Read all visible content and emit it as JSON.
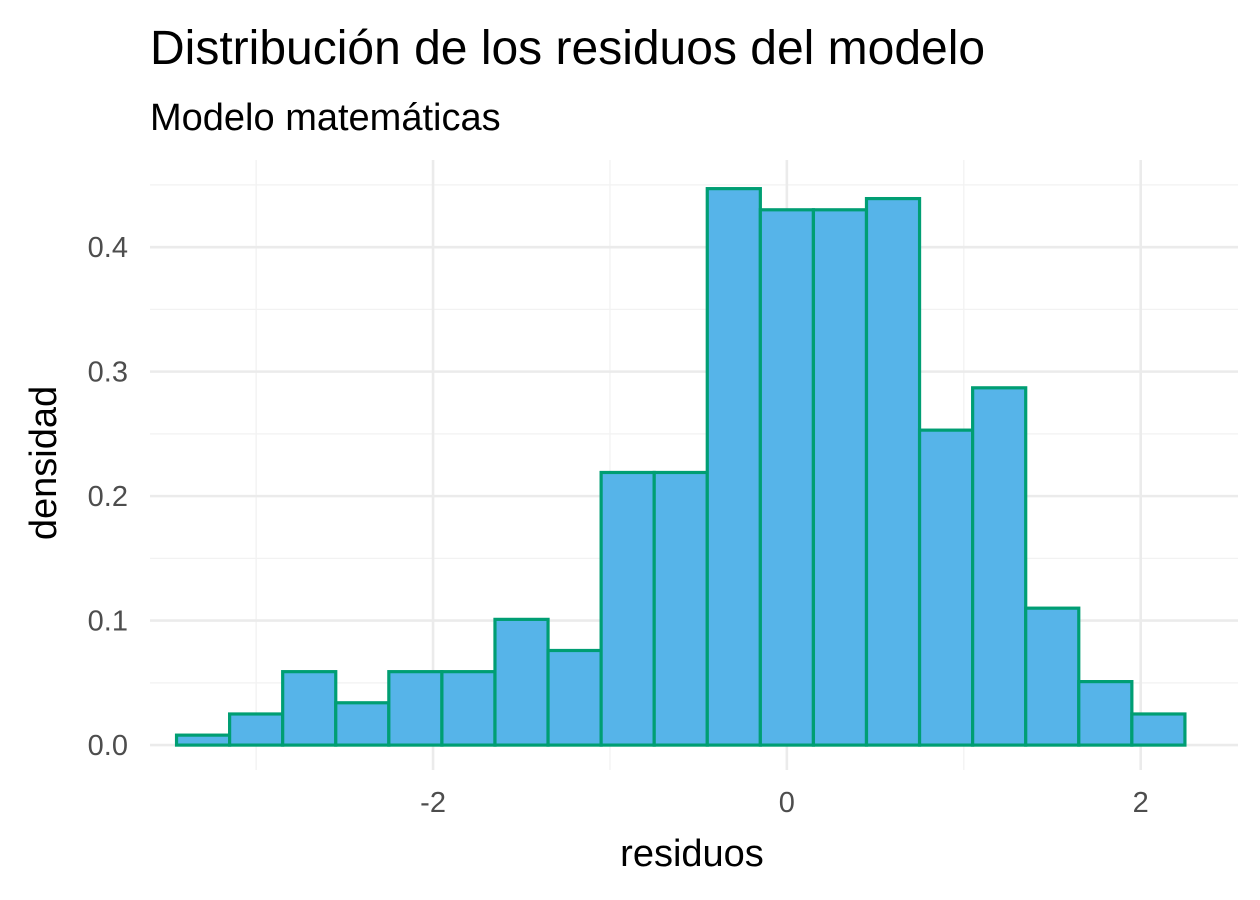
{
  "chart_data": {
    "type": "bar",
    "title": "Distribución de los residuos del modelo",
    "subtitle": "Modelo matemáticas",
    "xlabel": "residuos",
    "ylabel": "densidad",
    "bin_width": 0.3,
    "bins": [
      {
        "start": -3.45,
        "end": -3.15,
        "value": 0.008
      },
      {
        "start": -3.15,
        "end": -2.85,
        "value": 0.025
      },
      {
        "start": -2.85,
        "end": -2.55,
        "value": 0.059
      },
      {
        "start": -2.55,
        "end": -2.25,
        "value": 0.034
      },
      {
        "start": -2.25,
        "end": -1.95,
        "value": 0.059
      },
      {
        "start": -1.95,
        "end": -1.65,
        "value": 0.059
      },
      {
        "start": -1.65,
        "end": -1.35,
        "value": 0.101
      },
      {
        "start": -1.35,
        "end": -1.05,
        "value": 0.076
      },
      {
        "start": -1.05,
        "end": -0.75,
        "value": 0.219
      },
      {
        "start": -0.75,
        "end": -0.45,
        "value": 0.219
      },
      {
        "start": -0.45,
        "end": -0.15,
        "value": 0.447
      },
      {
        "start": -0.15,
        "end": 0.15,
        "value": 0.43
      },
      {
        "start": 0.15,
        "end": 0.45,
        "value": 0.43
      },
      {
        "start": 0.45,
        "end": 0.75,
        "value": 0.439
      },
      {
        "start": 0.75,
        "end": 1.05,
        "value": 0.253
      },
      {
        "start": 1.05,
        "end": 1.35,
        "value": 0.287
      },
      {
        "start": 1.35,
        "end": 1.65,
        "value": 0.11
      },
      {
        "start": 1.65,
        "end": 1.95,
        "value": 0.051
      },
      {
        "start": 1.95,
        "end": 2.25,
        "value": 0.025
      }
    ],
    "xlim": [
      -3.6,
      2.55
    ],
    "ylim": [
      -0.02,
      0.47
    ],
    "x_ticks": [
      -2,
      0,
      2
    ],
    "x_tick_labels": [
      "-2",
      "0",
      "2"
    ],
    "y_ticks": [
      0.0,
      0.1,
      0.2,
      0.3,
      0.4
    ],
    "y_tick_labels": [
      "0.0",
      "0.1",
      "0.2",
      "0.3",
      "0.4"
    ],
    "grid": true,
    "legend": "none",
    "colors": {
      "fill": "#56b4e9",
      "outline": "#009e73"
    }
  }
}
